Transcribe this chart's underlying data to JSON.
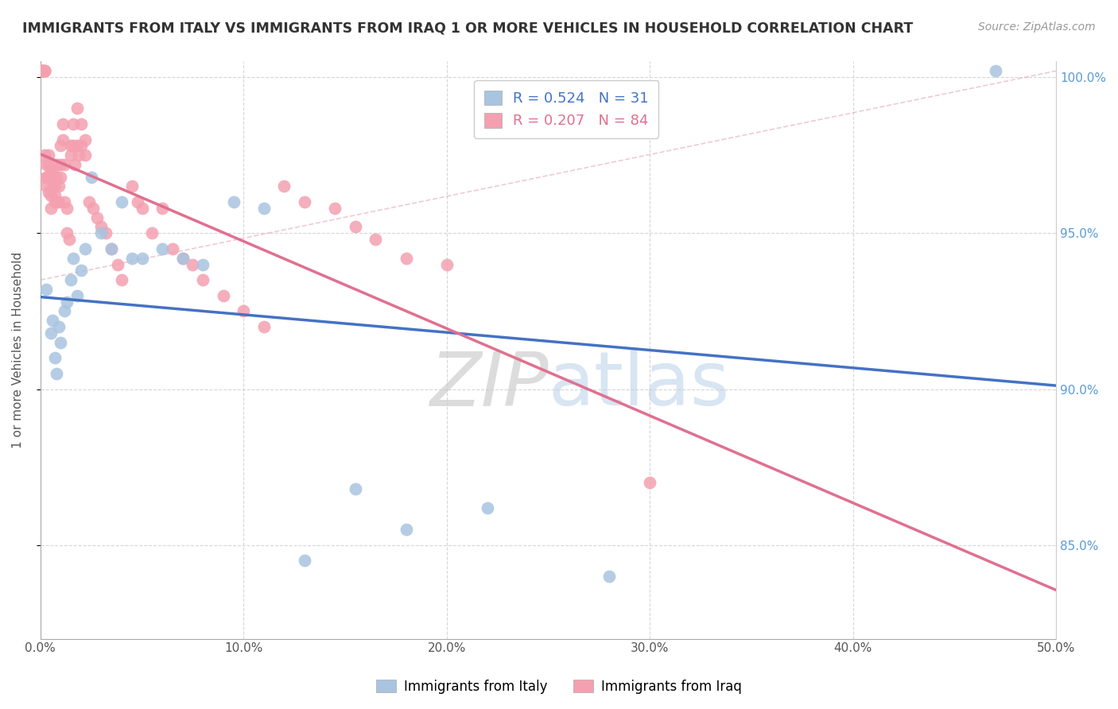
{
  "title": "IMMIGRANTS FROM ITALY VS IMMIGRANTS FROM IRAQ 1 OR MORE VEHICLES IN HOUSEHOLD CORRELATION CHART",
  "source": "Source: ZipAtlas.com",
  "ylabel": "1 or more Vehicles in Household",
  "xlim": [
    0.0,
    0.5
  ],
  "ylim": [
    0.82,
    1.005
  ],
  "xticks": [
    0.0,
    0.1,
    0.2,
    0.3,
    0.4,
    0.5
  ],
  "xticklabels": [
    "0.0%",
    "10.0%",
    "20.0%",
    "30.0%",
    "40.0%",
    "50.0%"
  ],
  "yticks": [
    0.85,
    0.9,
    0.95,
    1.0
  ],
  "yticklabels": [
    "85.0%",
    "90.0%",
    "95.0%",
    "100.0%"
  ],
  "italy_color": "#a8c4e0",
  "iraq_color": "#f4a0b0",
  "italy_line_color": "#4472c4",
  "iraq_line_color": "#e07090",
  "R_italy": 0.524,
  "N_italy": 31,
  "R_iraq": 0.207,
  "N_iraq": 84,
  "legend_label_italy": "Immigrants from Italy",
  "legend_label_iraq": "Immigrants from Iraq",
  "watermark_zip": "ZIP",
  "watermark_atlas": "atlas",
  "watermark_color_zip": "#c8c8c8",
  "watermark_color_atlas": "#c0d8f0",
  "italy_x": [
    0.003,
    0.005,
    0.006,
    0.007,
    0.008,
    0.009,
    0.01,
    0.012,
    0.013,
    0.015,
    0.016,
    0.018,
    0.02,
    0.022,
    0.025,
    0.03,
    0.035,
    0.04,
    0.045,
    0.05,
    0.06,
    0.07,
    0.08,
    0.095,
    0.11,
    0.13,
    0.155,
    0.18,
    0.22,
    0.28,
    0.47
  ],
  "italy_y": [
    0.932,
    0.918,
    0.922,
    0.91,
    0.905,
    0.92,
    0.915,
    0.925,
    0.928,
    0.935,
    0.942,
    0.93,
    0.938,
    0.945,
    0.968,
    0.95,
    0.945,
    0.96,
    0.942,
    0.942,
    0.945,
    0.942,
    0.94,
    0.96,
    0.958,
    0.845,
    0.868,
    0.855,
    0.862,
    0.84,
    1.002
  ],
  "iraq_x": [
    0.001,
    0.001,
    0.001,
    0.001,
    0.001,
    0.001,
    0.002,
    0.002,
    0.002,
    0.002,
    0.002,
    0.003,
    0.003,
    0.003,
    0.003,
    0.004,
    0.004,
    0.004,
    0.004,
    0.005,
    0.005,
    0.005,
    0.005,
    0.006,
    0.006,
    0.006,
    0.007,
    0.007,
    0.007,
    0.008,
    0.008,
    0.008,
    0.009,
    0.009,
    0.01,
    0.01,
    0.01,
    0.011,
    0.011,
    0.012,
    0.012,
    0.013,
    0.013,
    0.014,
    0.015,
    0.015,
    0.016,
    0.016,
    0.017,
    0.018,
    0.018,
    0.019,
    0.02,
    0.02,
    0.022,
    0.022,
    0.024,
    0.026,
    0.028,
    0.03,
    0.032,
    0.035,
    0.038,
    0.04,
    0.045,
    0.048,
    0.05,
    0.055,
    0.06,
    0.065,
    0.07,
    0.075,
    0.08,
    0.09,
    0.1,
    0.11,
    0.12,
    0.13,
    0.145,
    0.155,
    0.165,
    0.18,
    0.2,
    0.3
  ],
  "iraq_y": [
    1.002,
    1.002,
    1.002,
    1.002,
    1.002,
    1.002,
    1.002,
    1.002,
    1.002,
    1.002,
    0.975,
    0.972,
    0.968,
    0.965,
    0.968,
    0.975,
    0.972,
    0.968,
    0.963,
    0.97,
    0.968,
    0.962,
    0.958,
    0.965,
    0.968,
    0.97,
    0.965,
    0.96,
    0.962,
    0.96,
    0.968,
    0.972,
    0.965,
    0.96,
    0.968,
    0.972,
    0.978,
    0.985,
    0.98,
    0.972,
    0.96,
    0.958,
    0.95,
    0.948,
    0.978,
    0.975,
    0.985,
    0.978,
    0.972,
    0.99,
    0.978,
    0.975,
    0.985,
    0.978,
    0.98,
    0.975,
    0.96,
    0.958,
    0.955,
    0.952,
    0.95,
    0.945,
    0.94,
    0.935,
    0.965,
    0.96,
    0.958,
    0.95,
    0.958,
    0.945,
    0.942,
    0.94,
    0.935,
    0.93,
    0.925,
    0.92,
    0.965,
    0.96,
    0.958,
    0.952,
    0.948,
    0.942,
    0.94,
    0.87
  ]
}
